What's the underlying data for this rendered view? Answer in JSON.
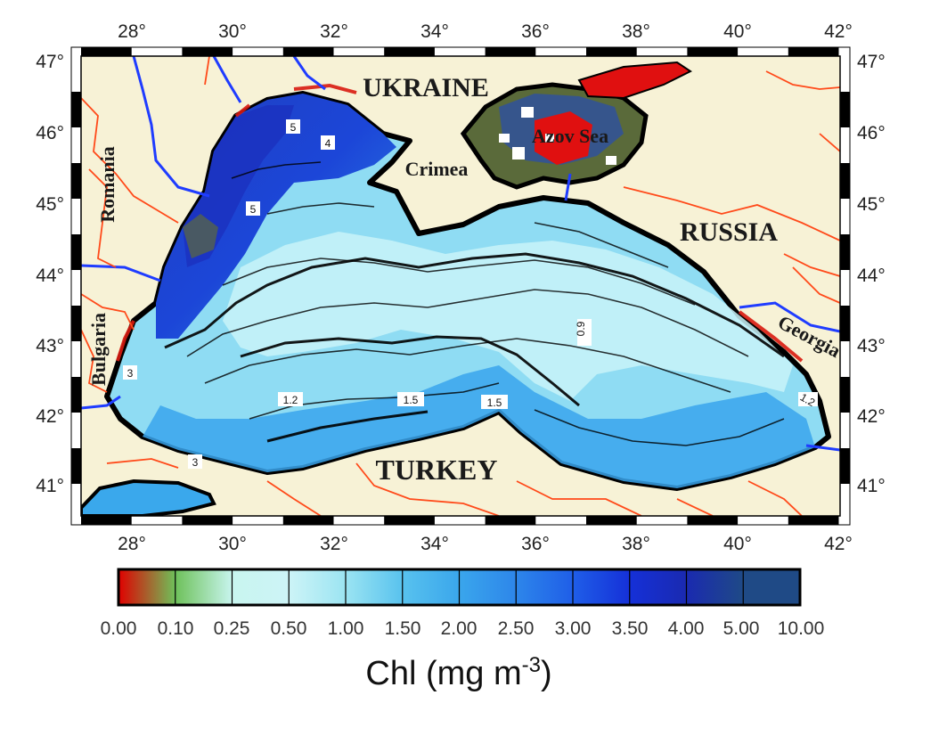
{
  "map": {
    "lon_ticks": [
      "28°",
      "30°",
      "32°",
      "34°",
      "36°",
      "38°",
      "40°",
      "42°"
    ],
    "lat_ticks": [
      "47°",
      "46°",
      "45°",
      "44°",
      "43°",
      "42°",
      "41°"
    ],
    "countries": {
      "ukraine": "UKRAINE",
      "russia": "RUSSIA",
      "turkey": "TURKEY",
      "romania": "Romania",
      "bulgaria": "Bulgaria",
      "georgia": "Georgia",
      "crimea": "Crimea",
      "azov": "Azov Sea"
    },
    "contour_labels": [
      "5",
      "4",
      "5",
      "3",
      "1.2",
      "1.5",
      "1.5",
      "0.9",
      "1.2",
      "3"
    ],
    "colors": {
      "land": "#f7f2d6",
      "river": "#1f3cff",
      "border": "#ff4a1a",
      "coast": "#000000",
      "hot": "#e01010"
    }
  },
  "colorbar": {
    "tick_labels": [
      "0.00",
      "0.10",
      "0.25",
      "0.50",
      "1.00",
      "1.50",
      "2.00",
      "2.50",
      "3.00",
      "3.50",
      "4.00",
      "5.00",
      "10.00"
    ],
    "colors": [
      "#e00000",
      "#6ec15a",
      "#c8f5ef",
      "#cdf4f7",
      "#9be4f2",
      "#58c2ee",
      "#3aa6ec",
      "#2d86ea",
      "#1f5ee8",
      "#1530d8",
      "#1a2ab0",
      "#1f4a86"
    ],
    "title_prefix": "Chl (mg m",
    "title_sup": "-3",
    "title_suffix": ")"
  }
}
